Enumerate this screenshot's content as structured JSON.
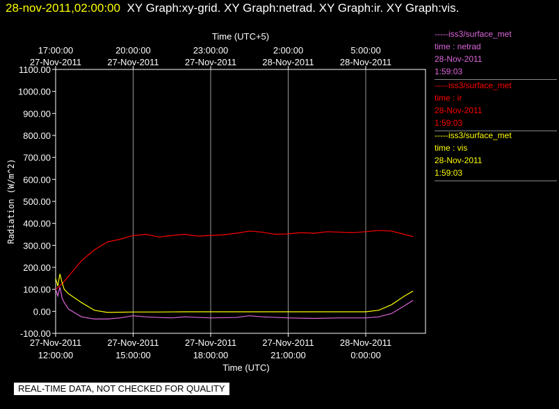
{
  "header": {
    "timestamp": "28-nov-2011,02:00:00",
    "graphs": "XY Graph:xy-grid.  XY Graph:netrad.  XY Graph:ir.  XY Graph:vis."
  },
  "legend": [
    {
      "source": "-----iss3/surface_met",
      "var": "time : netrad",
      "date": "28-Nov-2011",
      "time": "1:59:03",
      "color": "#dd66dd"
    },
    {
      "source": "-----iss3/surface_met",
      "var": "time : ir",
      "date": "28-Nov-2011",
      "time": "1:59:03",
      "color": "#ff0000"
    },
    {
      "source": "-----iss3/surface_met",
      "var": "time : vis",
      "date": "28-Nov-2011",
      "time": "1:59:03",
      "color": "#ffff00"
    }
  ],
  "disclaimer": "REAL-TIME DATA, NOT CHECKED FOR QUALITY",
  "chart_data": {
    "type": "line",
    "ylabel": "Radiation (W/m^2)",
    "xlabel": "Time (UTC)",
    "x2label": "Time (UTC+5)",
    "ylim": [
      -100,
      1100
    ],
    "yticks": [
      "1100.00",
      "1000.00",
      "900.00",
      "800.00",
      "700.00",
      "600.00",
      "500.00",
      "400.00",
      "300.00",
      "200.00",
      "100.00",
      "0.00",
      "-100.00"
    ],
    "x_ticks_bottom": [
      {
        "date": "27-Nov-2011",
        "time": "12:00:00"
      },
      {
        "date": "27-Nov-2011",
        "time": "15:00:00"
      },
      {
        "date": "27-Nov-2011",
        "time": "18:00:00"
      },
      {
        "date": "27-Nov-2011",
        "time": "21:00:00"
      },
      {
        "date": "28-Nov-2011",
        "time": "0:00:00"
      }
    ],
    "x_ticks_top": [
      {
        "time": "17:00:00",
        "date": "27-Nov-2011"
      },
      {
        "time": "20:00:00",
        "date": "27-Nov-2011"
      },
      {
        "time": "23:00:00",
        "date": "27-Nov-2011"
      },
      {
        "time": "2:00:00",
        "date": "28-Nov-2011"
      },
      {
        "time": "5:00:00",
        "date": "28-Nov-2011"
      }
    ],
    "x_range_utc": [
      "27-Nov-2011 12:00",
      "28-Nov-2011 02:00"
    ],
    "grid": "vertical",
    "series": [
      {
        "name": "ir",
        "color": "#ff0000",
        "x": [
          "2011-11-27 12:00",
          "2011-11-27 12:15",
          "2011-11-27 12:30",
          "2011-11-27 13:00",
          "2011-11-27 13:30",
          "2011-11-27 14:00",
          "2011-11-27 14:30",
          "2011-11-27 15:00",
          "2011-11-27 15:30",
          "2011-11-27 16:00",
          "2011-11-27 16:30",
          "2011-11-27 17:00",
          "2011-11-27 17:30",
          "2011-11-27 18:00",
          "2011-11-27 18:30",
          "2011-11-27 19:00",
          "2011-11-27 19:30",
          "2011-11-27 20:00",
          "2011-11-27 20:30",
          "2011-11-27 21:00",
          "2011-11-27 21:30",
          "2011-11-27 22:00",
          "2011-11-27 22:30",
          "2011-11-27 23:00",
          "2011-11-27 23:30",
          "2011-11-28 00:00",
          "2011-11-28 00:30",
          "2011-11-28 01:00",
          "2011-11-28 01:30",
          "2011-11-28 01:50"
        ],
        "y": [
          100,
          125,
          160,
          230,
          280,
          315,
          328,
          345,
          350,
          338,
          345,
          350,
          342,
          345,
          348,
          355,
          365,
          360,
          350,
          352,
          358,
          355,
          362,
          360,
          358,
          362,
          368,
          365,
          350,
          340
        ]
      },
      {
        "name": "vis",
        "color": "#ffff00",
        "x": [
          "2011-11-27 12:00",
          "2011-11-27 12:05",
          "2011-11-27 12:10",
          "2011-11-27 12:15",
          "2011-11-27 12:20",
          "2011-11-27 12:30",
          "2011-11-27 13:00",
          "2011-11-27 13:30",
          "2011-11-27 14:00",
          "2011-11-27 14:30",
          "2011-11-27 15:00",
          "2011-11-27 16:00",
          "2011-11-27 17:00",
          "2011-11-27 18:00",
          "2011-11-27 19:00",
          "2011-11-27 20:00",
          "2011-11-27 21:00",
          "2011-11-27 22:00",
          "2011-11-27 23:00",
          "2011-11-28 00:00",
          "2011-11-28 00:30",
          "2011-11-28 01:00",
          "2011-11-28 01:30",
          "2011-11-28 01:50"
        ],
        "y": [
          150,
          115,
          170,
          130,
          100,
          80,
          40,
          5,
          -5,
          -4,
          -3,
          -3,
          -2,
          -2,
          -2,
          -2,
          -2,
          -2,
          -2,
          -2,
          5,
          30,
          70,
          92
        ]
      },
      {
        "name": "netrad",
        "color": "#dd66dd",
        "x": [
          "2011-11-27 12:00",
          "2011-11-27 12:05",
          "2011-11-27 12:10",
          "2011-11-27 12:15",
          "2011-11-27 12:20",
          "2011-11-27 12:30",
          "2011-11-27 13:00",
          "2011-11-27 13:30",
          "2011-11-27 14:00",
          "2011-11-27 14:30",
          "2011-11-27 15:00",
          "2011-11-27 15:30",
          "2011-11-27 16:00",
          "2011-11-27 16:30",
          "2011-11-27 17:00",
          "2011-11-27 18:00",
          "2011-11-27 19:00",
          "2011-11-27 19:30",
          "2011-11-27 20:00",
          "2011-11-27 21:00",
          "2011-11-27 22:00",
          "2011-11-27 23:00",
          "2011-11-28 00:00",
          "2011-11-28 00:30",
          "2011-11-28 01:00",
          "2011-11-28 01:30",
          "2011-11-28 01:50"
        ],
        "y": [
          100,
          70,
          110,
          60,
          40,
          10,
          -25,
          -35,
          -35,
          -30,
          -20,
          -25,
          -28,
          -30,
          -25,
          -30,
          -28,
          -20,
          -25,
          -30,
          -32,
          -30,
          -30,
          -25,
          -10,
          25,
          50
        ]
      }
    ]
  }
}
